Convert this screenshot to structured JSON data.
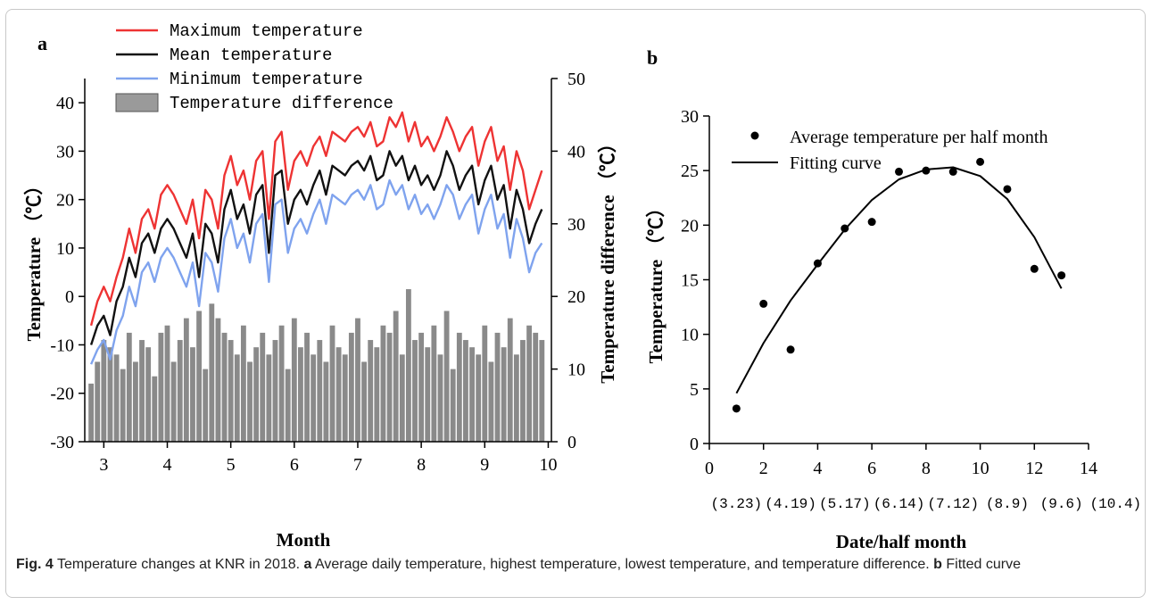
{
  "chart_data": [
    {
      "type": "line",
      "panel_label": "a",
      "xlabel": "Month",
      "ylabel": "Temperature （℃）",
      "y2label": "Temperature difference （℃）",
      "xlim": [
        2.7,
        10.05
      ],
      "ylim": [
        -30,
        45
      ],
      "y2lim": [
        0,
        50
      ],
      "x_ticks": [
        3,
        4,
        5,
        6,
        7,
        8,
        9,
        10
      ],
      "y_ticks": [
        -30,
        -20,
        -10,
        0,
        10,
        20,
        30,
        40
      ],
      "y2_ticks": [
        0,
        10,
        20,
        30,
        40,
        50
      ],
      "legend_position": "top-left",
      "x": [
        2.8,
        2.9,
        3.0,
        3.1,
        3.2,
        3.3,
        3.4,
        3.5,
        3.6,
        3.7,
        3.8,
        3.9,
        4.0,
        4.1,
        4.2,
        4.3,
        4.4,
        4.5,
        4.6,
        4.7,
        4.8,
        4.9,
        5.0,
        5.1,
        5.2,
        5.3,
        5.4,
        5.5,
        5.6,
        5.7,
        5.8,
        5.9,
        6.0,
        6.1,
        6.2,
        6.3,
        6.4,
        6.5,
        6.6,
        6.7,
        6.8,
        6.9,
        7.0,
        7.1,
        7.2,
        7.3,
        7.4,
        7.5,
        7.6,
        7.7,
        7.8,
        7.9,
        8.0,
        8.1,
        8.2,
        8.3,
        8.4,
        8.5,
        8.6,
        8.7,
        8.8,
        8.9,
        9.0,
        9.1,
        9.2,
        9.3,
        9.4,
        9.5,
        9.6,
        9.7,
        9.8,
        9.9
      ],
      "series": [
        {
          "name": "Maximum temperature",
          "color": "#ee3333",
          "values": [
            -6,
            -1,
            2,
            -1,
            4,
            8,
            14,
            9,
            16,
            18,
            14,
            21,
            23,
            21,
            18,
            15,
            20,
            12,
            22,
            20,
            14,
            25,
            29,
            23,
            26,
            20,
            28,
            30,
            16,
            32,
            34,
            22,
            28,
            30,
            27,
            31,
            33,
            29,
            34,
            33,
            32,
            34,
            35,
            33,
            36,
            31,
            32,
            37,
            35,
            38,
            32,
            36,
            31,
            33,
            30,
            33,
            37,
            34,
            30,
            33,
            35,
            27,
            32,
            35,
            28,
            31,
            22,
            30,
            26,
            18,
            22,
            26
          ]
        },
        {
          "name": "Mean temperature",
          "color": "#111111",
          "values": [
            -10,
            -6,
            -4,
            -8,
            -1,
            2,
            8,
            4,
            11,
            13,
            9,
            14,
            16,
            14,
            11,
            8,
            13,
            4,
            15,
            13,
            7,
            18,
            22,
            16,
            19,
            13,
            21,
            23,
            9,
            25,
            26,
            15,
            20,
            22,
            19,
            23,
            26,
            21,
            27,
            26,
            25,
            27,
            28,
            26,
            29,
            24,
            25,
            30,
            27,
            29,
            24,
            27,
            23,
            25,
            22,
            25,
            30,
            27,
            22,
            25,
            27,
            19,
            24,
            27,
            20,
            23,
            14,
            22,
            18,
            11,
            15,
            18
          ]
        },
        {
          "name": "Minimum temperature",
          "color": "#7fa3ee",
          "values": [
            -14,
            -11,
            -9,
            -13,
            -7,
            -4,
            2,
            -2,
            5,
            7,
            3,
            8,
            10,
            8,
            5,
            2,
            7,
            -2,
            9,
            7,
            1,
            12,
            16,
            10,
            13,
            7,
            15,
            17,
            3,
            19,
            20,
            9,
            14,
            16,
            13,
            17,
            20,
            15,
            21,
            20,
            19,
            21,
            22,
            20,
            23,
            18,
            19,
            24,
            21,
            23,
            18,
            21,
            17,
            19,
            16,
            19,
            23,
            21,
            16,
            19,
            21,
            13,
            18,
            21,
            14,
            17,
            8,
            16,
            12,
            5,
            9,
            11
          ]
        },
        {
          "name": "Temperature difference",
          "type": "bar",
          "color": "#8a8a8a",
          "values": [
            8,
            11,
            14,
            13,
            12,
            10,
            15,
            11,
            14,
            13,
            9,
            15,
            16,
            11,
            14,
            17,
            13,
            18,
            10,
            19,
            17,
            15,
            14,
            12,
            16,
            11,
            13,
            15,
            12,
            14,
            16,
            10,
            17,
            13,
            15,
            12,
            14,
            11,
            16,
            13,
            12,
            15,
            17,
            11,
            14,
            13,
            16,
            15,
            18,
            12,
            21,
            14,
            15,
            13,
            16,
            12,
            18,
            10,
            15,
            14,
            13,
            12,
            16,
            11,
            15,
            13,
            17,
            12,
            14,
            16,
            15,
            14
          ]
        }
      ]
    },
    {
      "type": "scatter",
      "panel_label": "b",
      "xlabel": "Date/half month",
      "ylabel": "Temperature （℃）",
      "xlim": [
        0,
        14
      ],
      "ylim": [
        0,
        30
      ],
      "x_ticks": [
        0,
        2,
        4,
        6,
        8,
        10,
        12,
        14
      ],
      "y_ticks": [
        0,
        5,
        10,
        15,
        20,
        25,
        30
      ],
      "date_labels": [
        "(3.23)",
        "(4.19)",
        "(5.17)",
        "(6.14)",
        "(7.12)",
        "(8.9)",
        "(9.6)",
        "(10.4)"
      ],
      "legend_position": "top-left",
      "points": {
        "name": "Average temperature per half month",
        "x": [
          1,
          2,
          3,
          4,
          5,
          6,
          7,
          8,
          9,
          10,
          11,
          12,
          13
        ],
        "y": [
          3.2,
          12.8,
          8.6,
          16.5,
          19.7,
          20.3,
          24.9,
          25.0,
          24.9,
          25.8,
          23.3,
          16.0,
          15.4
        ]
      },
      "fit": {
        "name": "Fitting curve",
        "x": [
          1,
          2,
          3,
          4,
          5,
          6,
          7,
          8,
          9,
          10,
          11,
          12,
          13
        ],
        "y": [
          4.6,
          9.2,
          13.1,
          16.4,
          19.6,
          22.3,
          24.2,
          25.1,
          25.3,
          24.5,
          22.4,
          18.9,
          14.2
        ]
      }
    }
  ],
  "caption": {
    "fig_label": "Fig. 4",
    "text1": "Temperature changes at KNR in 2018.",
    "a_label": "a",
    "text2": "Average daily temperature, highest temperature, lowest temperature, and temperature difference.",
    "b_label": "b",
    "text3": "Fitted curve"
  }
}
